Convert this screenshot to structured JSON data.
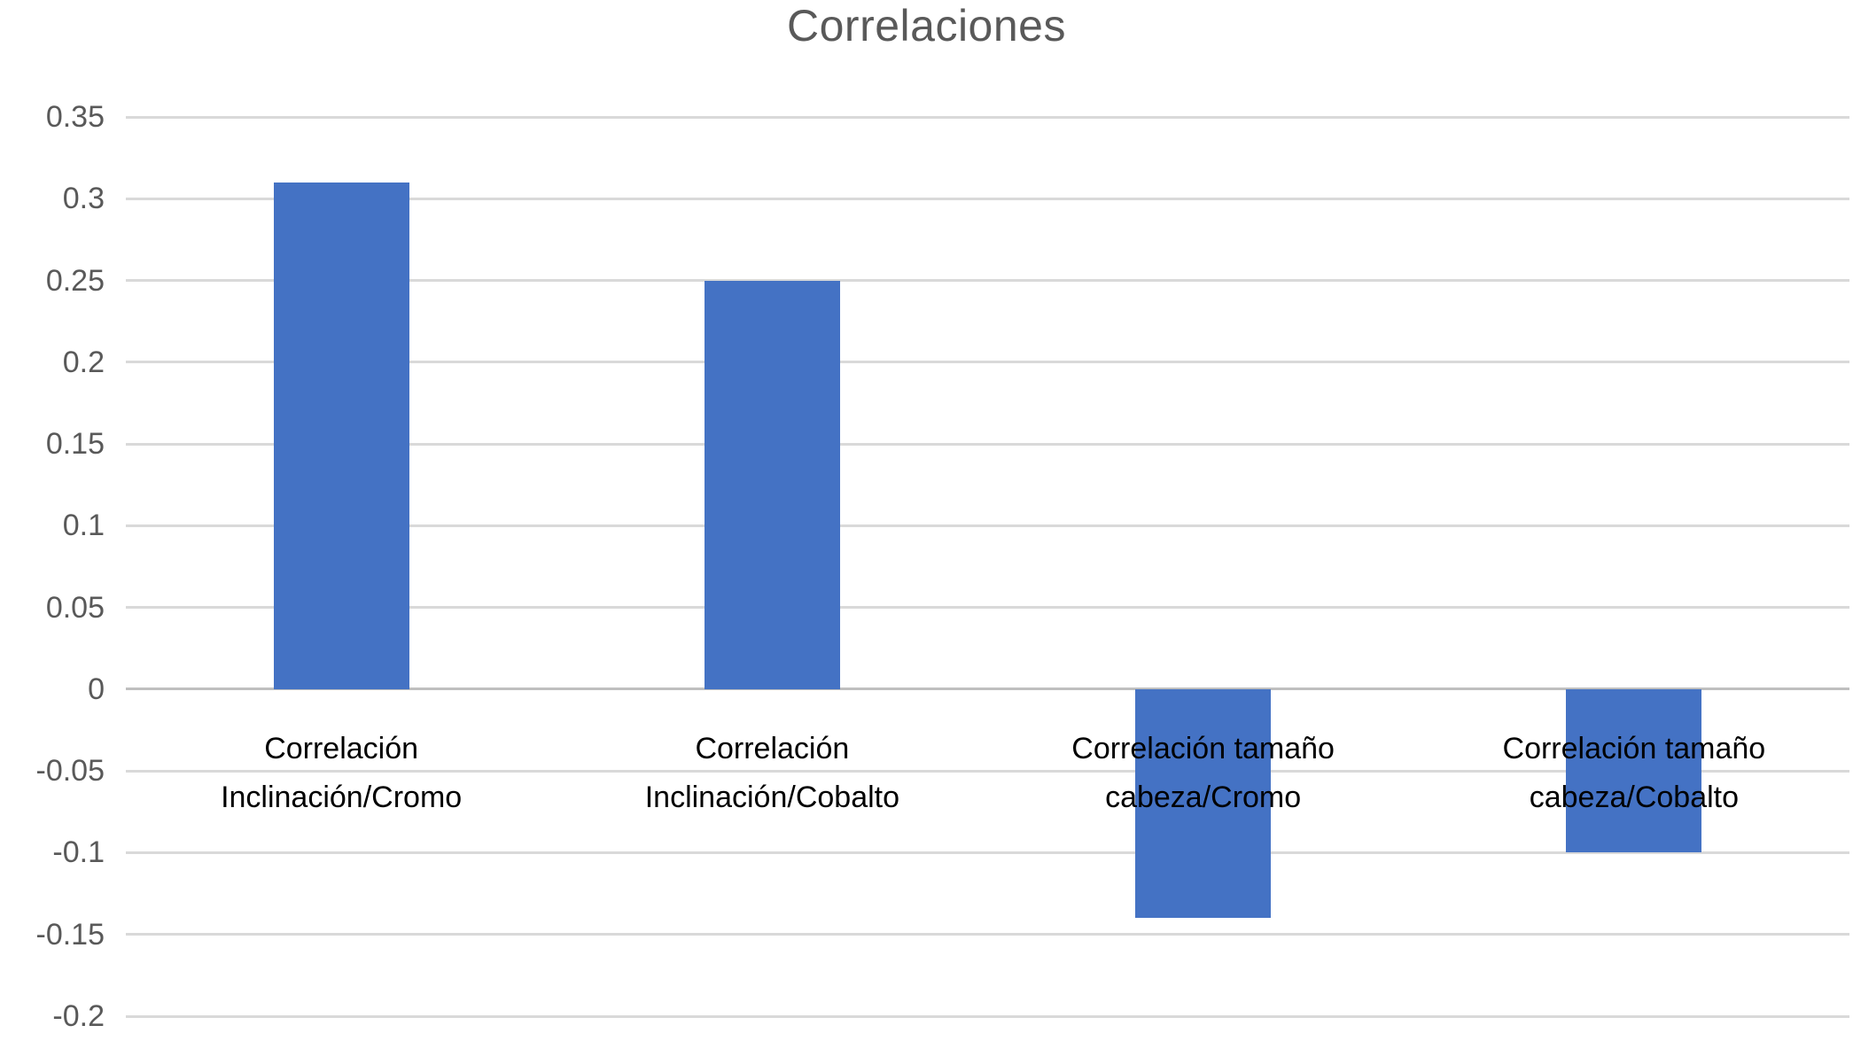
{
  "title": "Correlaciones",
  "chart_data": {
    "type": "bar",
    "title": "Correlaciones",
    "categories": [
      {
        "line1": "Correlación",
        "line2": "Inclinación/Cromo"
      },
      {
        "line1": "Correlación",
        "line2": "Inclinación/Cobalto"
      },
      {
        "line1": "Correlación tamaño",
        "line2": "cabeza/Cromo"
      },
      {
        "line1": "Correlación tamaño",
        "line2": "cabeza/Cobalto"
      }
    ],
    "values": [
      0.31,
      0.25,
      -0.14,
      -0.1
    ],
    "xlabel": "",
    "ylabel": "",
    "ylim": [
      -0.2,
      0.35
    ],
    "yticks": [
      {
        "label": "0.35",
        "value": 0.35
      },
      {
        "label": "0.3",
        "value": 0.3
      },
      {
        "label": "0.25",
        "value": 0.25
      },
      {
        "label": "0.2",
        "value": 0.2
      },
      {
        "label": "0.15",
        "value": 0.15
      },
      {
        "label": "0.1",
        "value": 0.1
      },
      {
        "label": "0.05",
        "value": 0.05
      },
      {
        "label": "0",
        "value": 0
      },
      {
        "label": "-0.05",
        "value": -0.05
      },
      {
        "label": "-0.1",
        "value": -0.1
      },
      {
        "label": "-0.15",
        "value": -0.15
      },
      {
        "label": "-0.2",
        "value": -0.2
      }
    ],
    "legend": null,
    "grid": true,
    "colors": {
      "bar": "#4472C4",
      "gridline": "#D9D9D9",
      "zero_axis": "#BFBFBF",
      "tick_label": "#595959",
      "category_label": "#000000",
      "title": "#595959"
    }
  }
}
